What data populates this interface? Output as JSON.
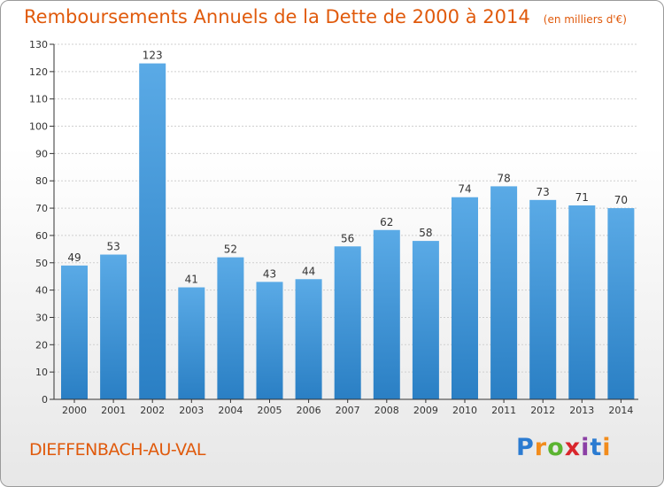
{
  "header": {
    "title": "Remboursements Annuels de la Dette de 2000 à 2014",
    "unit": "(en milliers d'€)"
  },
  "footer": {
    "commune": "DIEFFENBACH-AU-VAL",
    "logo_text": "Proxiti"
  },
  "colors": {
    "accent": "#e05a0c",
    "bar_top": "#5aaae6",
    "bar_bottom": "#2a7fc4",
    "axis": "#333333",
    "grid": "#cfcfcf"
  },
  "chart_data": {
    "type": "bar",
    "title": "Remboursements Annuels de la Dette de 2000 à 2014",
    "subtitle": "(en milliers d'€)",
    "xlabel": "",
    "ylabel": "",
    "categories": [
      "2000",
      "2001",
      "2002",
      "2003",
      "2004",
      "2005",
      "2006",
      "2007",
      "2008",
      "2009",
      "2010",
      "2011",
      "2012",
      "2013",
      "2014"
    ],
    "values": [
      49,
      53,
      123,
      41,
      52,
      43,
      44,
      56,
      62,
      58,
      74,
      78,
      73,
      71,
      70
    ],
    "ylim": [
      0,
      130
    ],
    "yticks": [
      0,
      10,
      20,
      30,
      40,
      50,
      60,
      70,
      80,
      90,
      100,
      110,
      120,
      130
    ],
    "grid": true,
    "data_labels": true,
    "legend": "none"
  }
}
